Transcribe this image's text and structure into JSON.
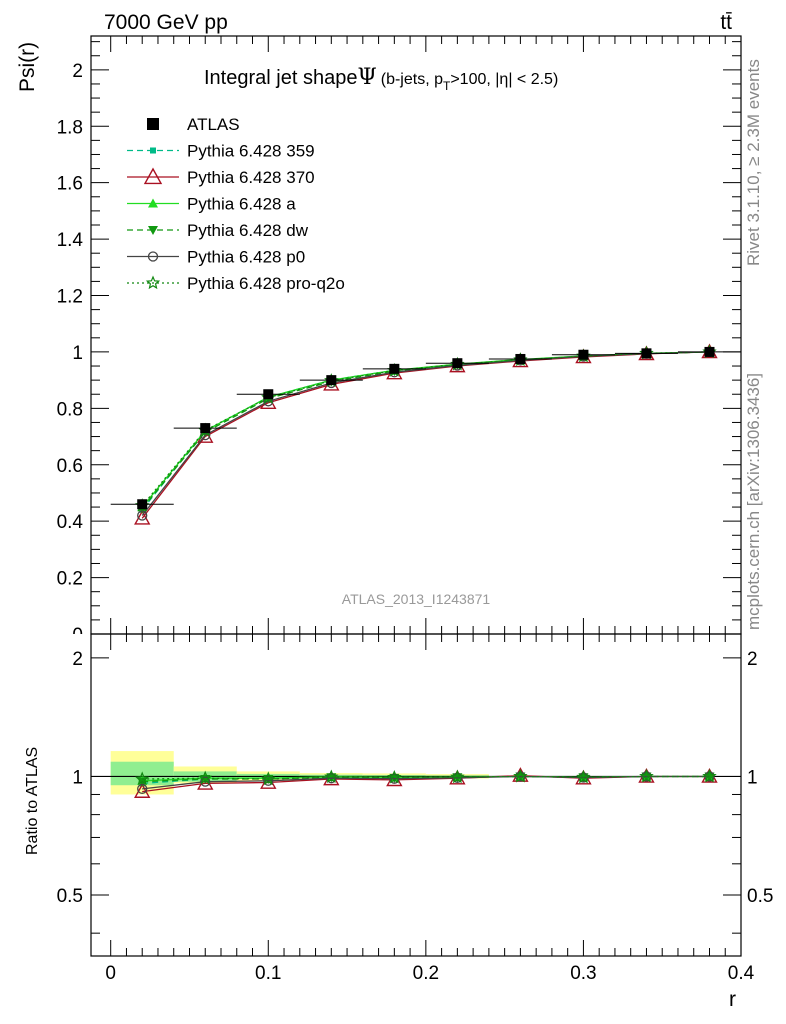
{
  "header": {
    "left": "7000 GeV pp",
    "right": "tt̄"
  },
  "side_labels": {
    "rivet": "Rivet 3.1.10, ≥ 2.3M events",
    "mcplots": "mcplots.cern.ch [arXiv:1306.3436]"
  },
  "colors": {
    "atlas": "#000000",
    "p359": "#00bb88",
    "p370": "#aa1122",
    "pa": "#22dd22",
    "pdw": "#119911",
    "pp0": "#444444",
    "pq2o": "#118811",
    "band_stat": "#90ee90",
    "band_total": "#ffff99"
  },
  "chart_data": [
    {
      "type": "line",
      "title_main": "Integral jet shape",
      "title_psi": "Ψ",
      "title_sub_a": "(b-jets, p",
      "title_sub_b": "T",
      "title_sub_c": ">100, |η| < 2.5)",
      "ylabel": "Psi(r)",
      "watermark": "ATLAS_2013_I1243871",
      "xlim": [
        -0.0125,
        0.4
      ],
      "ylim": [
        0,
        2.12
      ],
      "y_ticks": [
        "0.2",
        "0.4",
        "0.6",
        "0.8",
        "1",
        "1.2",
        "1.4",
        "1.6",
        "1.8",
        "2"
      ],
      "y_tick_vals": [
        0.2,
        0.4,
        0.6,
        0.8,
        1.0,
        1.2,
        1.4,
        1.6,
        1.8,
        2.0
      ],
      "y_zero_label": "0",
      "legend_position": "top-left",
      "x": [
        0.02,
        0.06,
        0.1,
        0.14,
        0.18,
        0.22,
        0.26,
        0.3,
        0.34,
        0.38
      ],
      "series": [
        {
          "name": "ATLAS",
          "values": [
            0.46,
            0.73,
            0.85,
            0.9,
            0.94,
            0.96,
            0.975,
            0.99,
            0.995,
            1.0
          ]
        },
        {
          "name": "Pythia 6.428 359",
          "values": [
            0.44,
            0.72,
            0.84,
            0.9,
            0.935,
            0.955,
            0.972,
            0.985,
            0.994,
            1.0
          ]
        },
        {
          "name": "Pythia 6.428 370",
          "values": [
            0.41,
            0.7,
            0.82,
            0.885,
            0.925,
            0.95,
            0.968,
            0.982,
            0.993,
            1.0
          ]
        },
        {
          "name": "Pythia 6.428 a",
          "values": [
            0.45,
            0.72,
            0.84,
            0.9,
            0.935,
            0.957,
            0.973,
            0.986,
            0.995,
            1.0
          ]
        },
        {
          "name": "Pythia 6.428 dw",
          "values": [
            0.445,
            0.715,
            0.835,
            0.895,
            0.932,
            0.955,
            0.972,
            0.985,
            0.994,
            1.0
          ]
        },
        {
          "name": "Pythia 6.428 p0",
          "values": [
            0.42,
            0.705,
            0.825,
            0.89,
            0.928,
            0.952,
            0.97,
            0.984,
            0.994,
            1.0
          ]
        },
        {
          "name": "Pythia 6.428 pro-q2o",
          "values": [
            0.455,
            0.722,
            0.838,
            0.898,
            0.934,
            0.956,
            0.972,
            0.985,
            0.995,
            1.0
          ]
        }
      ]
    },
    {
      "type": "line",
      "ylabel": "Ratio to ATLAS",
      "xlabel": "r",
      "xlim": [
        -0.0125,
        0.4
      ],
      "ylim": [
        0.35,
        2.3
      ],
      "x_ticks": [
        "0",
        "0.1",
        "0.2",
        "0.3",
        "0.4"
      ],
      "x_tick_vals": [
        0,
        0.1,
        0.2,
        0.3,
        0.4
      ],
      "y_ticks": [
        "0.5",
        "1",
        "2"
      ],
      "y_tick_vals": [
        0.5,
        1,
        2
      ],
      "bands": [
        {
          "x0": 0.0,
          "x1": 0.04,
          "stat": [
            0.95,
            1.09
          ],
          "total": [
            0.9,
            1.16
          ]
        },
        {
          "x0": 0.04,
          "x1": 0.08,
          "stat": [
            0.97,
            1.03
          ],
          "total": [
            0.96,
            1.06
          ]
        },
        {
          "x0": 0.08,
          "x1": 0.12,
          "stat": [
            0.985,
            1.015
          ],
          "total": [
            0.975,
            1.03
          ]
        },
        {
          "x0": 0.12,
          "x1": 0.16,
          "stat": [
            0.99,
            1.01
          ],
          "total": [
            0.985,
            1.02
          ]
        },
        {
          "x0": 0.16,
          "x1": 0.2,
          "stat": [
            0.992,
            1.008
          ],
          "total": [
            0.985,
            1.018
          ]
        },
        {
          "x0": 0.2,
          "x1": 0.24,
          "stat": [
            0.994,
            1.006
          ],
          "total": [
            0.988,
            1.014
          ]
        }
      ],
      "x": [
        0.02,
        0.06,
        0.1,
        0.14,
        0.18,
        0.22,
        0.26,
        0.3,
        0.34,
        0.38
      ],
      "series": [
        {
          "name": "Pythia 6.428 359",
          "values": [
            0.96,
            0.985,
            0.99,
            0.995,
            0.995,
            0.995,
            1.0,
            0.995,
            1.0,
            1.0
          ]
        },
        {
          "name": "Pythia 6.428 370",
          "values": [
            0.915,
            0.96,
            0.965,
            0.985,
            0.98,
            0.99,
            1.005,
            0.99,
            1.0,
            1.0
          ]
        },
        {
          "name": "Pythia 6.428 a",
          "values": [
            0.975,
            0.99,
            0.99,
            0.998,
            0.995,
            0.997,
            1.0,
            0.996,
            1.0,
            1.0
          ]
        },
        {
          "name": "Pythia 6.428 dw",
          "values": [
            0.97,
            0.985,
            0.985,
            0.995,
            0.992,
            0.995,
            1.0,
            0.995,
            1.0,
            1.0
          ]
        },
        {
          "name": "Pythia 6.428 p0",
          "values": [
            0.93,
            0.97,
            0.975,
            0.99,
            0.987,
            0.992,
            1.0,
            0.994,
            1.0,
            1.0
          ]
        },
        {
          "name": "Pythia 6.428 pro-q2o",
          "values": [
            0.985,
            0.99,
            0.985,
            0.997,
            0.994,
            0.996,
            1.0,
            0.995,
            1.0,
            1.0
          ]
        }
      ]
    }
  ]
}
